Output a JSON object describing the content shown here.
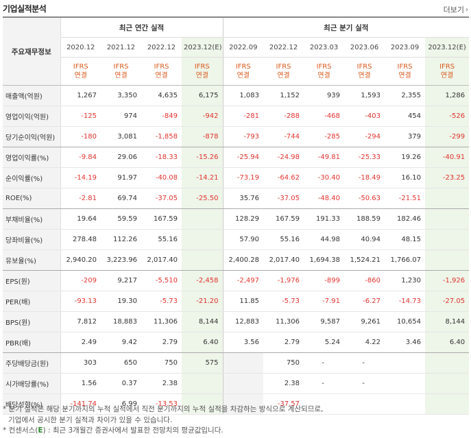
{
  "title": "기업실적분석",
  "more_label": "더보기",
  "header": {
    "row_label": "주요재무정보",
    "annual_title": "최근 연간 실적",
    "quarterly_title": "최근 분기 실적",
    "annual_periods": [
      "2020.12",
      "2021.12",
      "2022.12",
      "2023.12(E)"
    ],
    "quarterly_periods": [
      "2022.09",
      "2022.12",
      "2023.03",
      "2023.06",
      "2023.09",
      "2023.12(E)"
    ],
    "basis_top": "IFRS",
    "basis_bottom": "연결"
  },
  "rows": [
    {
      "label": "매출액(억원)",
      "values": [
        "1,267",
        "3,350",
        "4,635",
        "6,175",
        "1,083",
        "1,152",
        "939",
        "1,593",
        "2,355",
        "1,286"
      ]
    },
    {
      "label": "영업이익(억원)",
      "values": [
        "-125",
        "974",
        "-849",
        "-942",
        "-281",
        "-288",
        "-468",
        "-403",
        "454",
        "-526"
      ]
    },
    {
      "label": "당기순이익(억원)",
      "values": [
        "-180",
        "3,081",
        "-1,858",
        "-878",
        "-793",
        "-744",
        "-285",
        "-294",
        "379",
        "-299"
      ]
    },
    {
      "label": "영업이익률(%)",
      "values": [
        "-9.84",
        "29.06",
        "-18.33",
        "-15.26",
        "-25.94",
        "-24.98",
        "-49.81",
        "-25.33",
        "19.26",
        "-40.91"
      ]
    },
    {
      "label": "순이익률(%)",
      "values": [
        "-14.19",
        "91.97",
        "-40.08",
        "-14.21",
        "-73.19",
        "-64.62",
        "-30.40",
        "-18.49",
        "16.10",
        "-23.25"
      ]
    },
    {
      "label": "ROE(%)",
      "values": [
        "-2.81",
        "69.74",
        "-37.05",
        "-25.50",
        "35.76",
        "-37.05",
        "-48.40",
        "-50.63",
        "-21.51",
        ""
      ]
    },
    {
      "label": "부채비율(%)",
      "values": [
        "19.64",
        "59.59",
        "167.59",
        "",
        "128.29",
        "167.59",
        "191.33",
        "188.59",
        "182.46",
        ""
      ]
    },
    {
      "label": "당좌비율(%)",
      "values": [
        "278.48",
        "112.26",
        "55.16",
        "",
        "57.90",
        "55.16",
        "44.98",
        "40.94",
        "48.15",
        ""
      ]
    },
    {
      "label": "유보율(%)",
      "values": [
        "2,940.20",
        "3,223.96",
        "2,017.40",
        "",
        "2,400.28",
        "2,017.40",
        "1,694.38",
        "1,524.21",
        "1,766.07",
        ""
      ]
    },
    {
      "label": "EPS(원)",
      "values": [
        "-209",
        "9,217",
        "-5,510",
        "-2,458",
        "-2,497",
        "-1,976",
        "-899",
        "-860",
        "1,230",
        "-1,926"
      ]
    },
    {
      "label": "PER(배)",
      "values": [
        "-93.13",
        "19.30",
        "-5.73",
        "-21.20",
        "11.85",
        "-5.73",
        "-7.91",
        "-6.27",
        "-14.73",
        "-27.05"
      ]
    },
    {
      "label": "BPS(원)",
      "values": [
        "7,812",
        "18,883",
        "11,306",
        "8,144",
        "12,883",
        "11,306",
        "9,587",
        "9,261",
        "10,654",
        "8,144"
      ]
    },
    {
      "label": "PBR(배)",
      "values": [
        "2.49",
        "9.42",
        "2.79",
        "6.40",
        "3.56",
        "2.79",
        "5.24",
        "4.22",
        "3.46",
        "6.40"
      ]
    },
    {
      "label": "주당배당금(원)",
      "values": [
        "303",
        "650",
        "750",
        "575",
        "",
        "750",
        "-",
        "-",
        "",
        ""
      ]
    },
    {
      "label": "시가배당률(%)",
      "values": [
        "1.56",
        "0.37",
        "2.38",
        "",
        "",
        "2.38",
        "-",
        "-",
        "",
        ""
      ]
    },
    {
      "label": "배당성향(%)",
      "values": [
        "-141.74",
        "6.99",
        "-13.53",
        "",
        "",
        "-37.57",
        "",
        "",
        "",
        ""
      ]
    }
  ],
  "notes": {
    "line1": "* 분기 실적은 해당 분기까지의 누적 실적에서 직전 분기까지의 누적 실적을 차감하는 방식으로 계산되므로,",
    "line2": "기업에서 공시한 분기 실적과 차이가 있을 수 있습니다.",
    "line3_prefix": "* 컨센서스(",
    "line3_e": "E",
    "line3_suffix": ") : 최근 3개월간 증권사에서 발표한 전망치의 평균값입니다."
  },
  "colors": {
    "negative": "#e0342e",
    "ifrs": "#d95a1e",
    "estimate_bg": "#eef5e9"
  }
}
